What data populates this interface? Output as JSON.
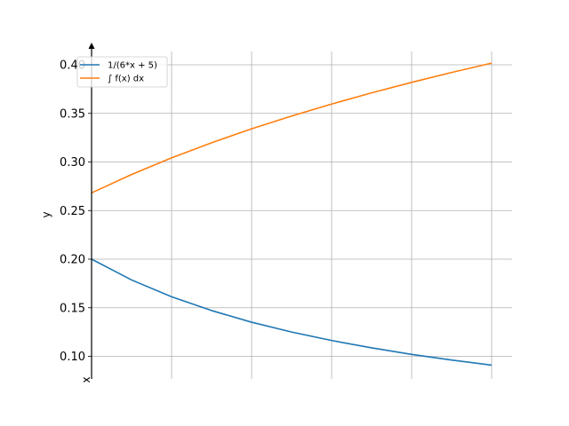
{
  "chart_data": {
    "type": "line",
    "title": "",
    "xlabel": "x",
    "ylabel": "y",
    "xlim": [
      0,
      1
    ],
    "ylim": [
      0.08,
      0.415
    ],
    "y_ticks": [
      0.1,
      0.15,
      0.2,
      0.25,
      0.3,
      0.35,
      0.4
    ],
    "y_tick_labels": [
      "0.10",
      "0.15",
      "0.20",
      "0.25",
      "0.30",
      "0.35",
      "0.40"
    ],
    "x_ticks": [
      0.2,
      0.4,
      0.6,
      0.8,
      1.0
    ],
    "x_tick_labels": [
      "",
      "",
      "",
      "",
      ""
    ],
    "grid": true,
    "legend_position": "top-left",
    "series": [
      {
        "name": "1/(6*x + 5)",
        "color": "#1f77b4",
        "x": [
          0,
          0.1,
          0.2,
          0.3,
          0.4,
          0.5,
          0.6,
          0.7,
          0.8,
          0.9,
          1.0
        ],
        "y": [
          0.2,
          0.1786,
          0.1613,
          0.1471,
          0.1351,
          0.125,
          0.1163,
          0.1087,
          0.102,
          0.0962,
          0.0909
        ]
      },
      {
        "name": "∫ f(x) dx",
        "color": "#ff7f0e",
        "x": [
          0,
          0.1,
          0.2,
          0.3,
          0.4,
          0.5,
          0.6,
          0.7,
          0.8,
          0.9,
          1.0
        ],
        "y": [
          0.2682,
          0.2871,
          0.3042,
          0.3198,
          0.3341,
          0.3473,
          0.3596,
          0.3711,
          0.3819,
          0.3921,
          0.4017
        ]
      }
    ]
  }
}
